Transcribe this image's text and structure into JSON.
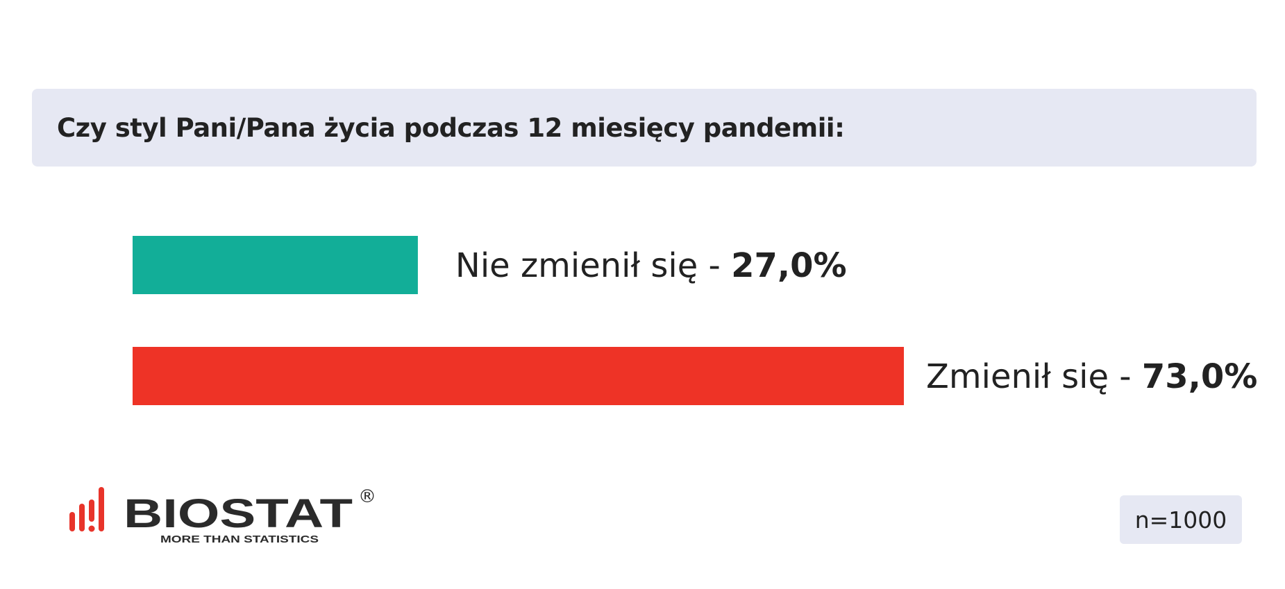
{
  "title": "Czy styl Pani/Pana życia podczas 12 miesięcy pandemii:",
  "chart_data": {
    "type": "bar",
    "orientation": "horizontal",
    "categories": [
      "Nie zmienił się",
      "Zmienił się"
    ],
    "values": [
      27.0,
      73.0
    ],
    "value_labels": [
      "27,0%",
      "73,0%"
    ],
    "separator": " - ",
    "colors": [
      "#12ae98",
      "#ee3326"
    ],
    "xlim": [
      0,
      100
    ],
    "grid": false,
    "legend": "none"
  },
  "logo": {
    "name": "BIOSTAT",
    "registered_mark": "®",
    "tagline": "MORE THAN STATISTICS",
    "color_mark": "#e8342a",
    "color_text": "#2b2b2b"
  },
  "sample_size": "n=1000"
}
